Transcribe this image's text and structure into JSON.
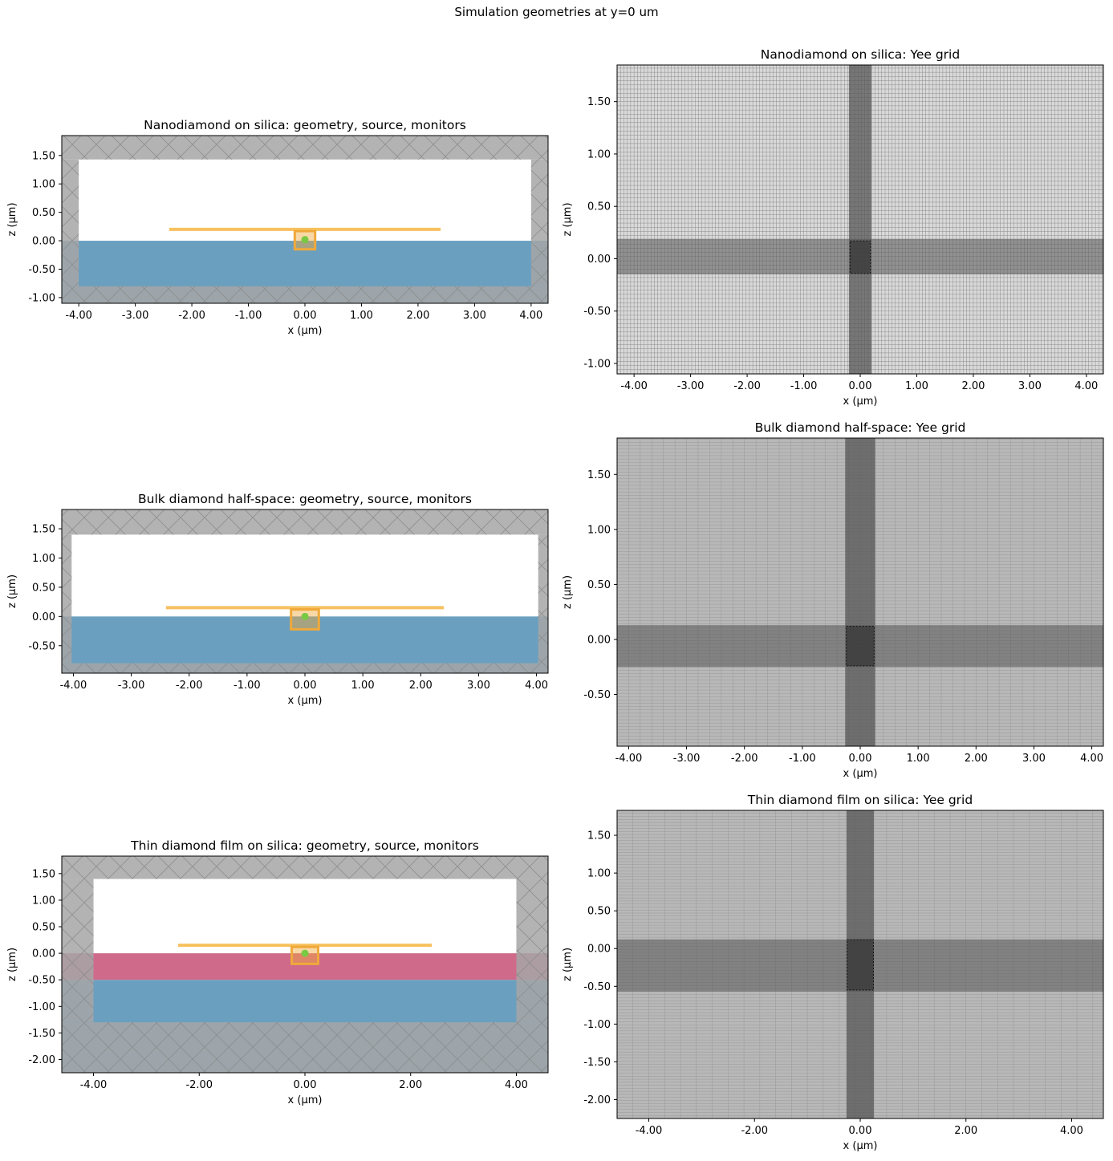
{
  "figure": {
    "suptitle": "Simulation geometries at y=0 um"
  },
  "colors": {
    "pml": "#a6a6a6",
    "pml_hatch": "#8a8a8a",
    "silica": "#6a9fbf",
    "diamond_film": "#cf6a8b",
    "monitor": "#f7c15f",
    "box_monitor": "#f0a93a",
    "source_point": "#7ac943",
    "grid_background": "#d9d9d9",
    "grid_line": "#7a7a7a",
    "refine_band": "#555555"
  },
  "chart_data": [
    {
      "id": "nd-geom",
      "type": "geometry",
      "title": "Nanodiamond on silica: geometry, source, monitors",
      "xlabel": "x (µm)",
      "ylabel": "z (µm)",
      "xlim": [
        -4.3,
        4.3
      ],
      "ylim": [
        -1.1,
        1.85
      ],
      "xticks": [
        -4,
        -3,
        -2,
        -1,
        0,
        1,
        2,
        3,
        4
      ],
      "xtick_labels": [
        "-4.00",
        "-3.00",
        "-2.00",
        "-1.00",
        "0.00",
        "1.00",
        "2.00",
        "3.00",
        "4.00"
      ],
      "yticks": [
        -1,
        -0.5,
        0,
        0.5,
        1,
        1.5
      ],
      "ytick_labels": [
        "-1.00",
        "-0.50",
        "0.00",
        "0.50",
        "1.00",
        "1.50"
      ],
      "pml": {
        "x_inner": [
          -4.0,
          4.0
        ],
        "z_inner": [
          -0.8,
          1.43
        ]
      },
      "layers": [
        {
          "material": "silica",
          "z": [
            -1.1,
            0.0
          ]
        }
      ],
      "flux_plane": {
        "x": [
          -2.4,
          2.4
        ],
        "z": 0.2
      },
      "box_monitor": {
        "x": [
          -0.18,
          0.18
        ],
        "z": [
          -0.15,
          0.17
        ]
      },
      "source": {
        "x": 0.0,
        "z": 0.02
      }
    },
    {
      "id": "nd-grid",
      "type": "grid",
      "title": "Nanodiamond on silica: Yee grid",
      "xlabel": "x (µm)",
      "ylabel": "z (µm)",
      "xlim": [
        -4.3,
        4.3
      ],
      "ylim": [
        -1.1,
        1.85
      ],
      "xticks": [
        -4,
        -3,
        -2,
        -1,
        0,
        1,
        2,
        3,
        4
      ],
      "xtick_labels": [
        "-4.00",
        "-3.00",
        "-2.00",
        "-1.00",
        "0.00",
        "1.00",
        "2.00",
        "3.00",
        "4.00"
      ],
      "yticks": [
        -1,
        -0.5,
        0,
        0.5,
        1,
        1.5
      ],
      "ytick_labels": [
        "-1.00",
        "-0.50",
        "0.00",
        "0.50",
        "1.00",
        "1.50"
      ],
      "refine_x": [
        -0.2,
        0.2
      ],
      "refine_z": [
        -0.15,
        0.19
      ],
      "structure_box": {
        "x": [
          -0.18,
          0.18
        ],
        "z": [
          -0.14,
          0.17
        ]
      },
      "coarse_dx": 0.06,
      "coarse_dz": 0.04,
      "shade": "light"
    },
    {
      "id": "bulk-geom",
      "type": "geometry",
      "title": "Bulk diamond half-space: geometry, source, monitors",
      "xlabel": "x (µm)",
      "ylabel": "z (µm)",
      "xlim": [
        -4.2,
        4.2
      ],
      "ylim": [
        -0.97,
        1.83
      ],
      "xticks": [
        -4,
        -3,
        -2,
        -1,
        0,
        1,
        2,
        3,
        4
      ],
      "xtick_labels": [
        "-4.00",
        "-3.00",
        "-2.00",
        "-1.00",
        "0.00",
        "1.00",
        "2.00",
        "3.00",
        "4.00"
      ],
      "yticks": [
        -0.5,
        0,
        0.5,
        1,
        1.5
      ],
      "ytick_labels": [
        "-0.50",
        "0.00",
        "0.50",
        "1.00",
        "1.50"
      ],
      "pml": {
        "x_inner": [
          -4.03,
          4.03
        ],
        "z_inner": [
          -0.8,
          1.4
        ]
      },
      "layers": [
        {
          "material": "silica",
          "z": [
            -0.97,
            0.0
          ]
        }
      ],
      "flux_plane": {
        "x": [
          -2.4,
          2.4
        ],
        "z": 0.15
      },
      "box_monitor": {
        "x": [
          -0.24,
          0.24
        ],
        "z": [
          -0.22,
          0.12
        ]
      },
      "source": {
        "x": 0.0,
        "z": 0.0
      }
    },
    {
      "id": "bulk-grid",
      "type": "grid",
      "title": "Bulk diamond half-space: Yee grid",
      "xlabel": "x (µm)",
      "ylabel": "z (µm)",
      "xlim": [
        -4.2,
        4.2
      ],
      "ylim": [
        -0.97,
        1.83
      ],
      "xticks": [
        -4,
        -3,
        -2,
        -1,
        0,
        1,
        2,
        3,
        4
      ],
      "xtick_labels": [
        "-4.00",
        "-3.00",
        "-2.00",
        "-1.00",
        "0.00",
        "1.00",
        "2.00",
        "3.00",
        "4.00"
      ],
      "yticks": [
        -0.5,
        0,
        0.5,
        1,
        1.5
      ],
      "ytick_labels": [
        "-0.50",
        "0.00",
        "0.50",
        "1.00",
        "1.50"
      ],
      "refine_x": [
        -0.26,
        0.26
      ],
      "refine_z": [
        -0.25,
        0.13
      ],
      "structure_box": {
        "x": [
          -0.24,
          0.24
        ],
        "z": [
          -0.24,
          0.12
        ]
      },
      "coarse_dx": 0.2,
      "coarse_dz": 0.03,
      "shade": "dark"
    },
    {
      "id": "film-geom",
      "type": "geometry",
      "title": "Thin diamond film on silica: geometry, source, monitors",
      "xlabel": "x (µm)",
      "ylabel": "z (µm)",
      "xlim": [
        -4.6,
        4.6
      ],
      "ylim": [
        -2.25,
        1.83
      ],
      "xticks": [
        -4,
        -2,
        0,
        2,
        4
      ],
      "xtick_labels": [
        "-4.00",
        "-2.00",
        "0.00",
        "2.00",
        "4.00"
      ],
      "yticks": [
        -2,
        -1.5,
        -1,
        -0.5,
        0,
        0.5,
        1,
        1.5
      ],
      "ytick_labels": [
        "-2.00",
        "-1.50",
        "-1.00",
        "-0.50",
        "0.00",
        "0.50",
        "1.00",
        "1.50"
      ],
      "pml": {
        "x_inner": [
          -4.0,
          4.0
        ],
        "z_inner": [
          -1.3,
          1.4
        ]
      },
      "layers": [
        {
          "material": "silica",
          "z": [
            -2.25,
            -0.5
          ]
        },
        {
          "material": "diamond_film",
          "z": [
            -0.5,
            0.0
          ]
        }
      ],
      "flux_plane": {
        "x": [
          -2.4,
          2.4
        ],
        "z": 0.15
      },
      "box_monitor": {
        "x": [
          -0.25,
          0.25
        ],
        "z": [
          -0.2,
          0.12
        ]
      },
      "source": {
        "x": 0.0,
        "z": 0.0
      }
    },
    {
      "id": "film-grid",
      "type": "grid",
      "title": "Thin diamond film on silica: Yee grid",
      "xlabel": "x (µm)",
      "ylabel": "z (µm)",
      "xlim": [
        -4.6,
        4.6
      ],
      "ylim": [
        -2.25,
        1.83
      ],
      "xticks": [
        -4,
        -2,
        0,
        2,
        4
      ],
      "xtick_labels": [
        "-4.00",
        "-2.00",
        "0.00",
        "2.00",
        "4.00"
      ],
      "yticks": [
        -2,
        -1.5,
        -1,
        -0.5,
        0,
        0.5,
        1,
        1.5
      ],
      "ytick_labels": [
        "-2.00",
        "-1.50",
        "-1.00",
        "-0.50",
        "0.00",
        "0.50",
        "1.00",
        "1.50"
      ],
      "refine_x": [
        -0.26,
        0.26
      ],
      "refine_z": [
        -0.57,
        0.12
      ],
      "structure_box": {
        "x": [
          -0.25,
          0.25
        ],
        "z": [
          -0.55,
          0.12
        ]
      },
      "coarse_dx": 0.3,
      "coarse_dz": 0.04,
      "shade": "dark"
    }
  ]
}
